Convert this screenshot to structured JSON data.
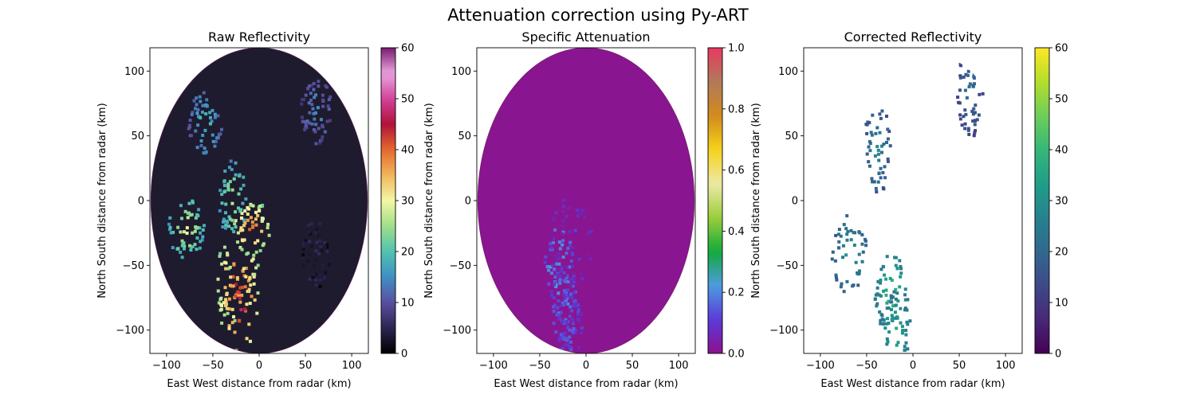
{
  "figure": {
    "title": "Attenuation correction using Py-ART"
  },
  "chart_data": [
    {
      "type": "heatmap",
      "title": "Raw Reflectivity",
      "xlabel": "East West distance from radar (km)",
      "ylabel": "North South distance from radar (km)",
      "xlim": [
        -118,
        118
      ],
      "ylim": [
        -118,
        118
      ],
      "xticks": [
        -100,
        -50,
        0,
        50,
        100
      ],
      "yticks": [
        -100,
        -50,
        0,
        50,
        100
      ],
      "radar_range_x_km": 117,
      "radar_range_y_km": 118,
      "colormap": "pyart_HomeyerRainbow",
      "colorbar": {
        "ticks": [
          0,
          10,
          20,
          30,
          40,
          50,
          60
        ],
        "range": [
          0,
          60
        ]
      },
      "rain_field": [
        {
          "x": -30,
          "y": 0,
          "value": 28
        },
        {
          "x": -25,
          "y": -60,
          "value": 45
        },
        {
          "x": -22,
          "y": -80,
          "value": 48
        },
        {
          "x": -10,
          "y": -20,
          "value": 42
        },
        {
          "x": -80,
          "y": -20,
          "value": 30
        },
        {
          "x": -60,
          "y": 60,
          "value": 20
        },
        {
          "x": 60,
          "y": 70,
          "value": 15
        },
        {
          "x": 60,
          "y": -40,
          "value": 5
        }
      ]
    },
    {
      "type": "heatmap",
      "title": "Specific Attenuation",
      "xlabel": "East West distance from radar (km)",
      "ylabel": "North South distance from radar (km)",
      "xlim": [
        -118,
        118
      ],
      "ylim": [
        -118,
        118
      ],
      "xticks": [
        -100,
        -50,
        0,
        50,
        100
      ],
      "yticks": [
        -100,
        -50,
        0,
        50,
        100
      ],
      "radar_range_x_km": 117,
      "radar_range_y_km": 118,
      "colormap": "pyart_Carbone17",
      "colorbar": {
        "ticks": [
          0.0,
          0.2,
          0.4,
          0.6,
          0.8,
          1.0
        ],
        "range": [
          0,
          1
        ]
      },
      "background_value": 0.0,
      "rain_field": [
        {
          "x": -30,
          "y": -50,
          "value": 0.25
        },
        {
          "x": -25,
          "y": -80,
          "value": 0.2
        },
        {
          "x": -20,
          "y": -100,
          "value": 0.15
        },
        {
          "x": -18,
          "y": -30,
          "value": 0.1
        }
      ]
    },
    {
      "type": "heatmap",
      "title": "Corrected Reflectivity",
      "xlabel": "East West distance from radar (km)",
      "ylabel": "North South distance from radar (km)",
      "xlim": [
        -118,
        118
      ],
      "ylim": [
        -118,
        118
      ],
      "xticks": [
        -100,
        -50,
        0,
        50,
        100
      ],
      "yticks": [
        -100,
        -50,
        0,
        50,
        100
      ],
      "radar_range_x_km": 117,
      "radar_range_y_km": 118,
      "colormap": "viridis",
      "colorbar": {
        "ticks": [
          0,
          10,
          20,
          30,
          40,
          50,
          60
        ],
        "range": [
          0,
          60
        ]
      },
      "rain_field": [
        {
          "x": -70,
          "y": -40,
          "value": 32
        },
        {
          "x": -25,
          "y": -70,
          "value": 42
        },
        {
          "x": -20,
          "y": -100,
          "value": 38
        },
        {
          "x": -40,
          "y": 40,
          "value": 28
        },
        {
          "x": 60,
          "y": 85,
          "value": 22
        }
      ]
    }
  ]
}
